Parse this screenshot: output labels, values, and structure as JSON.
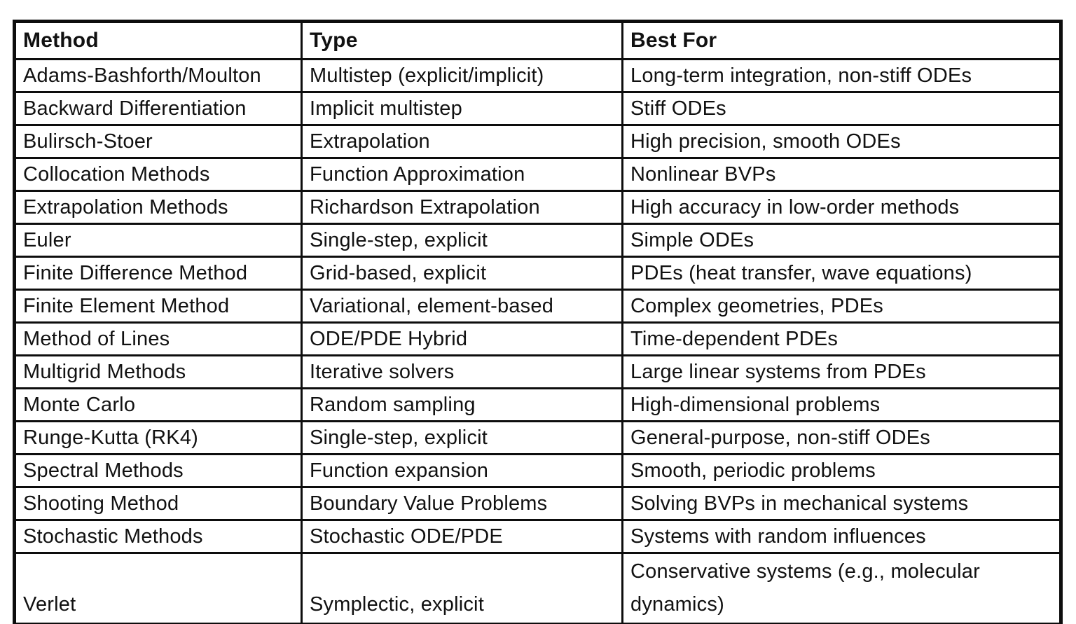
{
  "table": {
    "columns": [
      "Method",
      "Type",
      "Best For"
    ],
    "rows": [
      [
        "Adams-Bashforth/Moulton",
        "Multistep (explicit/implicit)",
        "Long-term integration, non-stiff ODEs"
      ],
      [
        "Backward Differentiation",
        "Implicit multistep",
        "Stiff ODEs"
      ],
      [
        "Bulirsch-Stoer",
        "Extrapolation",
        "High precision, smooth ODEs"
      ],
      [
        "Collocation Methods",
        "Function Approximation",
        "Nonlinear BVPs"
      ],
      [
        "Extrapolation Methods",
        "Richardson Extrapolation",
        "High accuracy in low-order methods"
      ],
      [
        "Euler",
        "Single-step, explicit",
        "Simple ODEs"
      ],
      [
        "Finite Difference Method",
        "Grid-based, explicit",
        "PDEs (heat transfer, wave equations)"
      ],
      [
        "Finite Element Method",
        "Variational, element-based",
        "Complex geometries, PDEs"
      ],
      [
        "Method of Lines",
        "ODE/PDE Hybrid",
        "Time-dependent PDEs"
      ],
      [
        "Multigrid Methods",
        "Iterative solvers",
        "Large linear systems from PDEs"
      ],
      [
        "Monte Carlo",
        "Random sampling",
        "High-dimensional problems"
      ],
      [
        "Runge-Kutta (RK4)",
        "Single-step, explicit",
        "General-purpose, non-stiff ODEs"
      ],
      [
        "Spectral Methods",
        "Function expansion",
        "Smooth, periodic problems"
      ],
      [
        "Shooting Method",
        "Boundary Value Problems",
        "Solving BVPs in mechanical systems"
      ],
      [
        "Stochastic Methods",
        "Stochastic ODE/PDE",
        "Systems with random influences"
      ],
      [
        "Verlet",
        "Symplectic, explicit",
        "Conservative systems (e.g., molecular dynamics)"
      ]
    ]
  },
  "colors": {
    "border": "#0d0d0d",
    "text": "#111111",
    "background": "#ffffff"
  }
}
